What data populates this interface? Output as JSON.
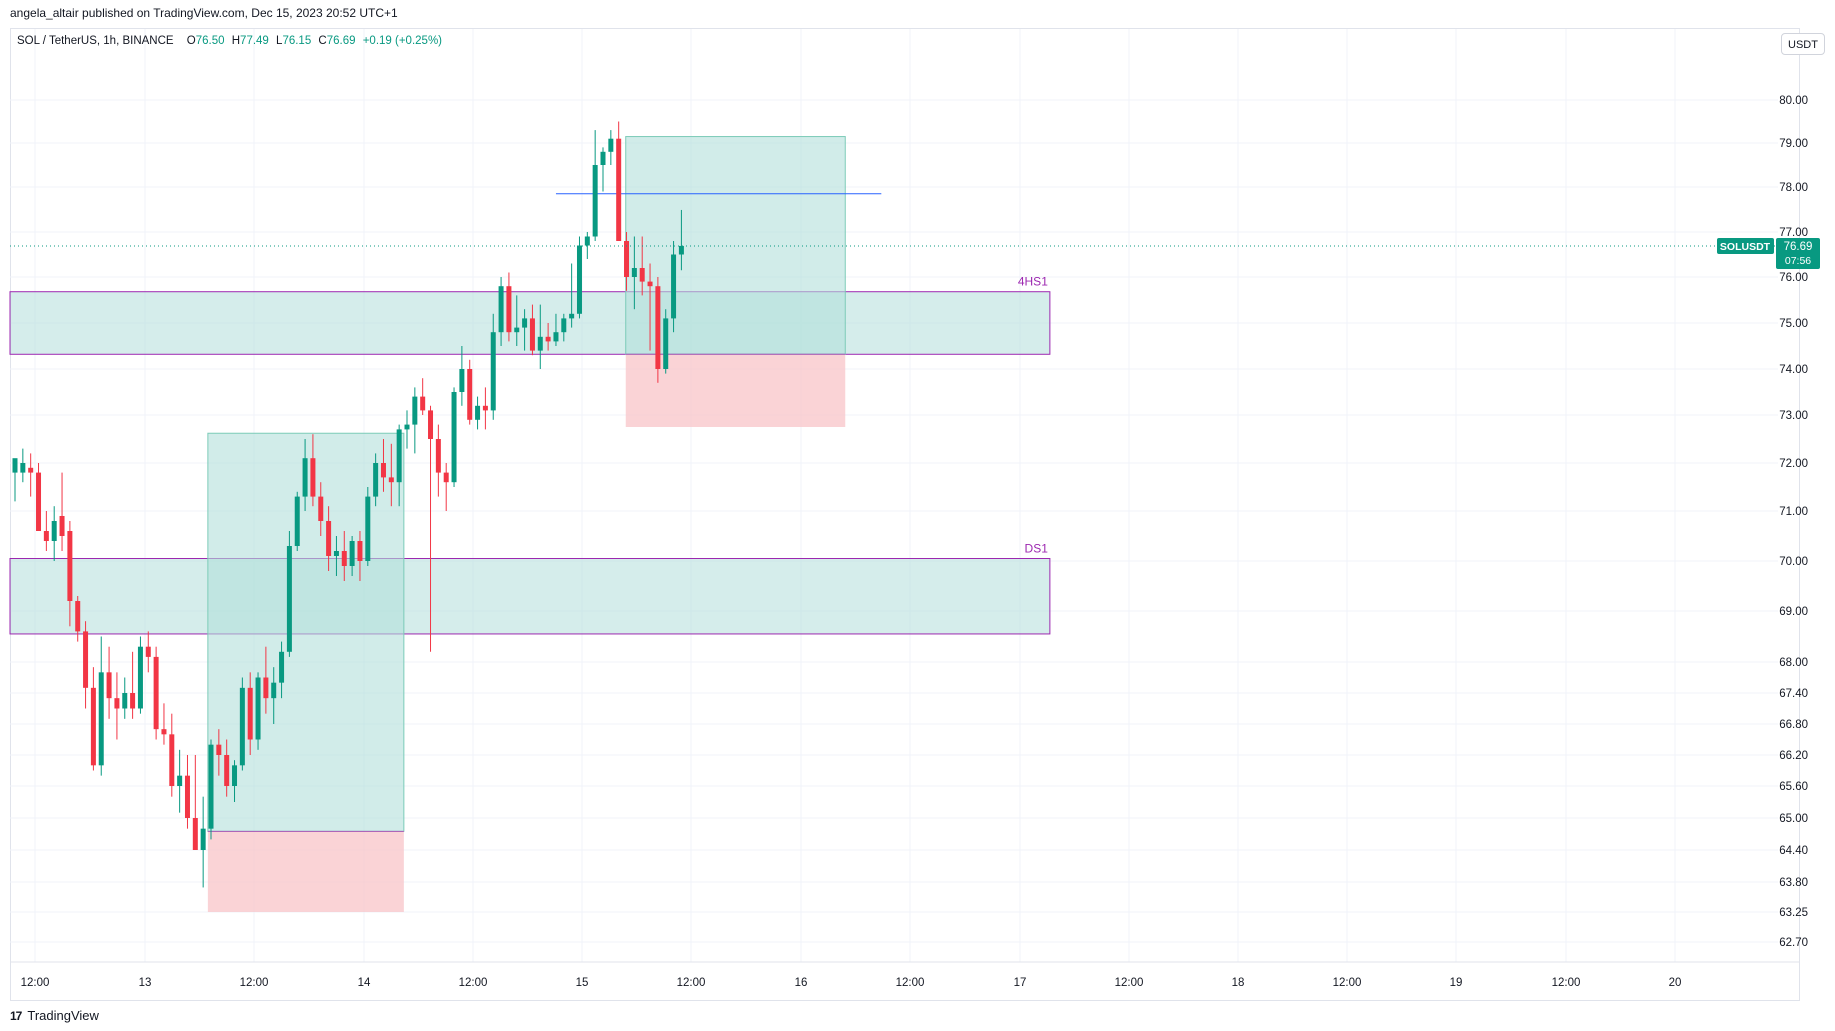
{
  "header": {
    "published": "angela_altair published on TradingView.com, Dec 15, 2023 20:52 UTC+1"
  },
  "legend": {
    "symbol": "SOL / TetherUS, 1h, BINANCE",
    "open_label": "O",
    "open": "76.50",
    "high_label": "H",
    "high": "77.49",
    "low_label": "L",
    "low": "76.15",
    "close_label": "C",
    "close": "76.69",
    "change": "+0.19 (+0.25%)"
  },
  "currency_button": "USDT",
  "footer": {
    "logo": "17",
    "brand": "TradingView"
  },
  "colors": {
    "up": "#089981",
    "down": "#f23645",
    "zone_fill": "#b2dfdb",
    "zone_border": "#9c27b0",
    "loss_fill": "#f8c4c8",
    "hline": "#2962ff"
  },
  "chart_data": {
    "type": "candlestick",
    "symbol_label": "SOLUSDT",
    "last_price": "76.69",
    "countdown": "07:56",
    "y_ticks": [
      "80.00",
      "79.00",
      "78.00",
      "77.00",
      "76.00",
      "75.00",
      "74.00",
      "73.00",
      "72.00",
      "71.00",
      "70.00",
      "69.00",
      "68.00",
      "67.40",
      "66.80",
      "66.20",
      "65.60",
      "65.00",
      "64.40",
      "63.80",
      "63.25",
      "62.70"
    ],
    "x_ticks": [
      "12:00",
      "13",
      "12:00",
      "14",
      "12:00",
      "15",
      "12:00",
      "16",
      "12:00",
      "17",
      "12:00",
      "18",
      "12:00",
      "19",
      "12:00",
      "20"
    ],
    "zones": [
      {
        "label": "4HS1",
        "top": 75.68,
        "bottom": 74.32,
        "start": 0,
        "end": 132
      },
      {
        "label": "DS1",
        "top": 70.05,
        "bottom": 68.55,
        "start": 0,
        "end": 132
      }
    ],
    "positions": [
      {
        "entry": 64.75,
        "target": 72.62,
        "stop": 63.25,
        "start": 24.6,
        "end": 49.6
      },
      {
        "entry": 74.32,
        "target": 79.15,
        "stop": 72.75,
        "start": 77.9,
        "end": 105.9
      }
    ],
    "hline": {
      "price": 77.85,
      "start": 69,
      "end": 110.5
    },
    "candles": [
      [
        71.8,
        72.0,
        71.2,
        72.1
      ],
      [
        71.8,
        72.3,
        71.6,
        72.0
      ],
      [
        71.9,
        72.2,
        71.3,
        71.8
      ],
      [
        71.8,
        72.0,
        70.6,
        70.6
      ],
      [
        70.6,
        71.0,
        70.2,
        70.4
      ],
      [
        70.4,
        71.1,
        70.0,
        70.8
      ],
      [
        70.9,
        71.8,
        70.2,
        70.5
      ],
      [
        70.6,
        70.8,
        68.7,
        69.2
      ],
      [
        69.2,
        69.3,
        68.4,
        68.6
      ],
      [
        68.6,
        68.8,
        67.1,
        67.5
      ],
      [
        67.5,
        67.9,
        65.9,
        66.0
      ],
      [
        66.0,
        68.5,
        65.8,
        67.8
      ],
      [
        67.8,
        68.3,
        66.9,
        67.3
      ],
      [
        67.3,
        67.8,
        66.5,
        67.1
      ],
      [
        67.1,
        67.7,
        66.9,
        67.4
      ],
      [
        67.4,
        68.2,
        66.9,
        67.1
      ],
      [
        67.1,
        68.5,
        67.0,
        68.3
      ],
      [
        68.3,
        68.6,
        67.8,
        68.1
      ],
      [
        68.1,
        68.3,
        66.5,
        66.7
      ],
      [
        66.7,
        67.2,
        66.4,
        66.6
      ],
      [
        66.6,
        67.0,
        65.4,
        65.6
      ],
      [
        65.6,
        66.3,
        65.1,
        65.8
      ],
      [
        65.8,
        66.2,
        64.8,
        65.0
      ],
      [
        65.0,
        66.2,
        64.5,
        64.4
      ],
      [
        64.4,
        65.4,
        63.7,
        64.8
      ],
      [
        64.8,
        66.5,
        64.6,
        66.4
      ],
      [
        66.4,
        66.7,
        65.8,
        66.2
      ],
      [
        66.2,
        66.5,
        65.4,
        65.6
      ],
      [
        65.6,
        66.1,
        65.3,
        66.0
      ],
      [
        66.0,
        67.7,
        65.9,
        67.5
      ],
      [
        67.5,
        67.8,
        66.2,
        66.5
      ],
      [
        66.5,
        67.8,
        66.3,
        67.7
      ],
      [
        67.7,
        68.3,
        67.0,
        67.3
      ],
      [
        67.3,
        67.9,
        66.8,
        67.6
      ],
      [
        67.6,
        68.4,
        67.3,
        68.2
      ],
      [
        68.2,
        70.6,
        68.1,
        70.3
      ],
      [
        70.3,
        71.4,
        70.2,
        71.3
      ],
      [
        71.3,
        72.5,
        71.0,
        72.1
      ],
      [
        72.1,
        72.6,
        71.1,
        71.3
      ],
      [
        71.3,
        71.6,
        70.5,
        70.8
      ],
      [
        70.8,
        71.1,
        69.8,
        70.1
      ],
      [
        70.1,
        70.5,
        69.7,
        70.2
      ],
      [
        70.2,
        70.6,
        69.6,
        69.9
      ],
      [
        69.9,
        70.5,
        69.7,
        70.4
      ],
      [
        70.4,
        70.6,
        69.6,
        70.0
      ],
      [
        70.0,
        71.5,
        69.9,
        71.3
      ],
      [
        71.3,
        72.2,
        71.1,
        72.0
      ],
      [
        72.0,
        72.5,
        71.4,
        71.7
      ],
      [
        71.7,
        72.4,
        71.1,
        71.6
      ],
      [
        71.6,
        72.8,
        71.1,
        72.7
      ],
      [
        72.7,
        73.1,
        72.3,
        72.8
      ],
      [
        72.8,
        73.6,
        72.2,
        73.4
      ],
      [
        73.4,
        73.8,
        73.0,
        73.1
      ],
      [
        73.1,
        73.2,
        68.2,
        72.5
      ],
      [
        72.5,
        72.8,
        71.3,
        71.8
      ],
      [
        71.8,
        72.0,
        71.0,
        71.6
      ],
      [
        71.6,
        73.6,
        71.5,
        73.5
      ],
      [
        73.5,
        74.5,
        73.2,
        74.0
      ],
      [
        74.0,
        74.2,
        72.8,
        72.9
      ],
      [
        72.9,
        73.4,
        72.7,
        73.2
      ],
      [
        73.2,
        73.6,
        72.7,
        73.1
      ],
      [
        73.1,
        75.2,
        72.9,
        74.8
      ],
      [
        74.8,
        76.0,
        74.5,
        75.8
      ],
      [
        75.8,
        76.1,
        74.6,
        74.8
      ],
      [
        74.8,
        75.6,
        74.5,
        74.9
      ],
      [
        74.9,
        75.3,
        74.4,
        75.1
      ],
      [
        75.1,
        75.4,
        74.3,
        74.4
      ],
      [
        74.4,
        75.4,
        74.0,
        74.7
      ],
      [
        74.7,
        75.0,
        74.4,
        74.6
      ],
      [
        74.6,
        75.2,
        74.5,
        74.8
      ],
      [
        74.8,
        75.2,
        74.6,
        75.1
      ],
      [
        75.1,
        76.3,
        74.9,
        75.2
      ],
      [
        75.2,
        76.9,
        75.1,
        76.7
      ],
      [
        76.7,
        77.0,
        76.4,
        76.9
      ],
      [
        76.9,
        79.3,
        76.8,
        78.5
      ],
      [
        78.5,
        78.9,
        77.9,
        78.8
      ],
      [
        78.8,
        79.3,
        78.5,
        79.1
      ],
      [
        79.1,
        79.5,
        76.8,
        76.8
      ],
      [
        76.8,
        77.0,
        75.7,
        76.0
      ],
      [
        76.0,
        76.9,
        75.3,
        76.2
      ],
      [
        76.2,
        76.9,
        75.6,
        75.9
      ],
      [
        75.9,
        76.3,
        74.4,
        75.8
      ],
      [
        75.8,
        76.0,
        73.7,
        74.0
      ],
      [
        74.0,
        75.3,
        73.9,
        75.1
      ],
      [
        75.1,
        76.8,
        74.8,
        76.5
      ],
      [
        76.5,
        77.49,
        76.15,
        76.69
      ]
    ]
  }
}
